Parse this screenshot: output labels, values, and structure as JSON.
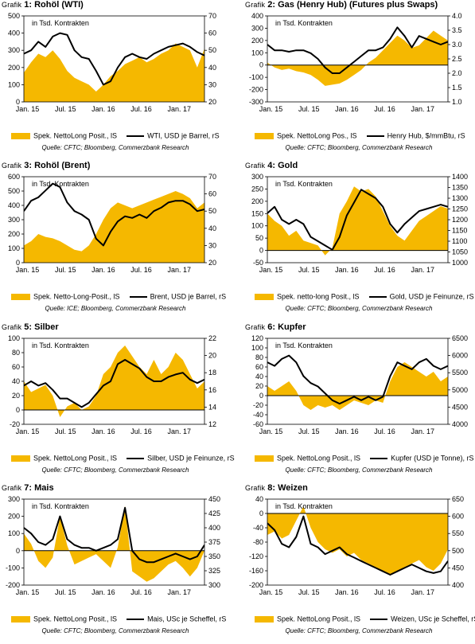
{
  "colors": {
    "bar": "#f5b800",
    "line": "#000000",
    "grid": "#000000"
  },
  "chart_data": [
    {
      "id": "g1",
      "type": "area",
      "title_prefix": "Grafik",
      "title_num": "1: ",
      "title": "Rohöl (WTI)",
      "annotation": "in Tsd. Kontrakten",
      "left_axis": {
        "min": 0,
        "max": 500,
        "ticks": [
          "0",
          "100",
          "200",
          "300",
          "400",
          "500"
        ]
      },
      "right_axis": {
        "min": 20,
        "max": 70,
        "ticks": [
          "20",
          "30",
          "40",
          "50",
          "60",
          "70"
        ]
      },
      "x_ticks": [
        "Jan. 15",
        "Jul. 15",
        "Jan. 16",
        "Jul. 16",
        "Jan. 17"
      ],
      "legend_area": "Spek. NettoLong Posit., lS",
      "legend_line": "WTI, USD je Barrel, rS",
      "source": "Quelle: CFTC; Bloomberg, Commerzbank Research",
      "x": [
        0,
        0.04,
        0.08,
        0.12,
        0.16,
        0.2,
        0.24,
        0.28,
        0.32,
        0.36,
        0.4,
        0.44,
        0.48,
        0.52,
        0.56,
        0.6,
        0.64,
        0.68,
        0.72,
        0.76,
        0.8,
        0.84,
        0.88,
        0.92,
        0.96,
        1.0
      ],
      "area": [
        170,
        230,
        280,
        260,
        300,
        250,
        180,
        140,
        120,
        100,
        60,
        100,
        150,
        180,
        220,
        240,
        260,
        230,
        250,
        280,
        300,
        340,
        320,
        300,
        200,
        310
      ],
      "line": [
        48,
        50,
        55,
        52,
        58,
        60,
        59,
        50,
        46,
        45,
        38,
        30,
        32,
        40,
        46,
        48,
        46,
        45,
        48,
        50,
        52,
        53,
        54,
        52,
        49,
        47
      ]
    },
    {
      "id": "g2",
      "type": "area",
      "title_prefix": "Grafik",
      "title_num": "2: ",
      "title": "Gas (Henry Hub) (Futures plus Swaps)",
      "annotation": "in Tsd. Kontrakten",
      "left_axis": {
        "min": -300,
        "max": 400,
        "ticks": [
          "-300",
          "-200",
          "-100",
          "0",
          "100",
          "200",
          "300",
          "400"
        ]
      },
      "right_axis": {
        "min": 1.0,
        "max": 4.0,
        "ticks": [
          "1.0",
          "1.5",
          "2.0",
          "2.5",
          "3.0",
          "3.5",
          "4.0"
        ]
      },
      "x_ticks": [
        "Jan. 15",
        "Jul. 15",
        "Jan. 16",
        "Jul. 16",
        "Jan. 17"
      ],
      "legend_area": "Spek. NettoLong Pos., lS",
      "legend_line": "Henry Hub, $/mmBtu, rS",
      "source": "Quelle: CFTC; Bloomberg, Commerzbank Research",
      "x": [
        0,
        0.04,
        0.08,
        0.12,
        0.16,
        0.2,
        0.24,
        0.28,
        0.32,
        0.36,
        0.4,
        0.44,
        0.48,
        0.52,
        0.56,
        0.6,
        0.64,
        0.68,
        0.72,
        0.76,
        0.8,
        0.84,
        0.88,
        0.92,
        0.96,
        1.0
      ],
      "area": [
        20,
        -20,
        -40,
        -30,
        -50,
        -60,
        -80,
        -120,
        -170,
        -160,
        -150,
        -120,
        -80,
        -40,
        20,
        60,
        120,
        180,
        240,
        200,
        140,
        160,
        220,
        280,
        240,
        200
      ],
      "line": [
        3.0,
        2.8,
        2.8,
        2.75,
        2.8,
        2.8,
        2.7,
        2.5,
        2.2,
        2.0,
        2.0,
        2.2,
        2.4,
        2.6,
        2.8,
        2.8,
        2.9,
        3.2,
        3.6,
        3.3,
        2.9,
        3.3,
        3.2,
        3.1,
        3.0,
        3.1
      ]
    },
    {
      "id": "g3",
      "type": "area",
      "title_prefix": "Grafik",
      "title_num": "3: ",
      "title": "Rohöl (Brent)",
      "annotation": "in Tsd. Kontrakten",
      "left_axis": {
        "min": 0,
        "max": 600,
        "ticks": [
          "0",
          "100",
          "200",
          "300",
          "400",
          "500",
          "600"
        ]
      },
      "right_axis": {
        "min": 20,
        "max": 70,
        "ticks": [
          "20",
          "30",
          "40",
          "50",
          "60",
          "70"
        ]
      },
      "x_ticks": [
        "Jan. 15",
        "Jul. 15",
        "Jan. 16",
        "Jul. 16",
        "Jan. 17"
      ],
      "legend_area": "Spek. Netto-Long-Posit., lS",
      "legend_line": "Brent, USD je Barrel, rS",
      "source": "Quelle: ICE; Bloomberg, Commerzbank Research",
      "x": [
        0,
        0.04,
        0.08,
        0.12,
        0.16,
        0.2,
        0.24,
        0.28,
        0.32,
        0.36,
        0.4,
        0.44,
        0.48,
        0.52,
        0.56,
        0.6,
        0.64,
        0.68,
        0.72,
        0.76,
        0.8,
        0.84,
        0.88,
        0.92,
        0.96,
        1.0
      ],
      "area": [
        120,
        150,
        200,
        180,
        170,
        150,
        120,
        90,
        80,
        120,
        200,
        300,
        380,
        420,
        400,
        380,
        400,
        420,
        440,
        460,
        480,
        500,
        480,
        450,
        380,
        420
      ],
      "line": [
        50,
        56,
        58,
        62,
        66,
        64,
        55,
        50,
        48,
        45,
        34,
        30,
        38,
        44,
        47,
        46,
        48,
        46,
        50,
        52,
        55,
        56,
        56,
        54,
        50,
        51
      ]
    },
    {
      "id": "g4",
      "type": "area",
      "title_prefix": "Grafik",
      "title_num": "4: ",
      "title": "Gold",
      "annotation": "in Tsd. Kontrakten",
      "left_axis": {
        "min": -50,
        "max": 300,
        "ticks": [
          "-50",
          "0",
          "50",
          "100",
          "150",
          "200",
          "250",
          "300"
        ]
      },
      "right_axis": {
        "min": 1000,
        "max": 1400,
        "ticks": [
          "1000",
          "1050",
          "1100",
          "1150",
          "1200",
          "1250",
          "1300",
          "1350",
          "1400"
        ]
      },
      "x_ticks": [
        "Jan. 15",
        "Jul. 15",
        "Jan. 16",
        "Jul. 16",
        "Jan. 17"
      ],
      "legend_area": "Spek. netto-long Posit., lS",
      "legend_line": "Gold, USD je Feinunze, rS",
      "source": "Quelle: CFTC; Bloomberg, Commerzbank Research",
      "x": [
        0,
        0.04,
        0.08,
        0.12,
        0.16,
        0.2,
        0.24,
        0.28,
        0.32,
        0.36,
        0.4,
        0.44,
        0.48,
        0.52,
        0.56,
        0.6,
        0.64,
        0.68,
        0.72,
        0.76,
        0.8,
        0.84,
        0.88,
        0.92,
        0.96,
        1.0
      ],
      "area": [
        150,
        120,
        100,
        60,
        80,
        40,
        30,
        20,
        -20,
        10,
        150,
        200,
        260,
        240,
        250,
        220,
        160,
        100,
        60,
        40,
        80,
        120,
        140,
        160,
        180,
        170
      ],
      "line": [
        1230,
        1260,
        1200,
        1180,
        1200,
        1180,
        1120,
        1100,
        1080,
        1060,
        1120,
        1220,
        1280,
        1340,
        1320,
        1300,
        1260,
        1180,
        1140,
        1180,
        1210,
        1240,
        1250,
        1260,
        1270,
        1260
      ]
    },
    {
      "id": "g5",
      "type": "area",
      "title_prefix": "Grafik",
      "title_num": "5: ",
      "title": "Silber",
      "annotation": "in Tsd. Kontrakten",
      "left_axis": {
        "min": -20,
        "max": 100,
        "ticks": [
          "-20",
          "0",
          "20",
          "40",
          "60",
          "80",
          "100"
        ]
      },
      "right_axis": {
        "min": 12,
        "max": 22,
        "ticks": [
          "12",
          "14",
          "16",
          "18",
          "20",
          "22"
        ]
      },
      "x_ticks": [
        "Jan. 15",
        "Jul. 15",
        "Jan. 16",
        "Jul. 16",
        "Jan. 17"
      ],
      "legend_area": "Spek. NettoLong Posit., lS",
      "legend_line": "Silber, USD je Feinunze, rS",
      "source": "Quelle: CFTC; Bloomberg, Commerzbank Research",
      "x": [
        0,
        0.04,
        0.08,
        0.12,
        0.16,
        0.2,
        0.24,
        0.28,
        0.32,
        0.36,
        0.4,
        0.44,
        0.48,
        0.52,
        0.56,
        0.6,
        0.64,
        0.68,
        0.72,
        0.76,
        0.8,
        0.84,
        0.88,
        0.92,
        0.96,
        1.0
      ],
      "area": [
        40,
        25,
        30,
        35,
        20,
        -10,
        5,
        10,
        0,
        5,
        20,
        50,
        60,
        80,
        90,
        75,
        60,
        50,
        70,
        50,
        60,
        80,
        70,
        50,
        30,
        40
      ],
      "line": [
        16.5,
        17,
        16.5,
        16.8,
        16,
        15,
        15,
        14.5,
        14,
        14.5,
        15.5,
        16.5,
        17,
        19,
        19.5,
        19,
        18.5,
        17.5,
        17,
        17,
        17.5,
        17.8,
        18,
        17.2,
        16.8,
        17.2
      ]
    },
    {
      "id": "g6",
      "type": "area",
      "title_prefix": "Grafik",
      "title_num": "6: ",
      "title": "Kupfer",
      "annotation": "in Tsd. Kontrakten",
      "left_axis": {
        "min": -60,
        "max": 120,
        "ticks": [
          "-60",
          "-40",
          "-20",
          "0",
          "20",
          "40",
          "60",
          "80",
          "100",
          "120"
        ]
      },
      "right_axis": {
        "min": 4000,
        "max": 6500,
        "ticks": [
          "4000",
          "4500",
          "5000",
          "5500",
          "6000",
          "6500"
        ]
      },
      "x_ticks": [
        "Jan. 15",
        "Jul. 15",
        "Jan. 16",
        "Jul. 16",
        "Jan. 17"
      ],
      "legend_area": "Spek. NettoLong Posit., lS",
      "legend_line": "Kupfer (USD je Tonne), rS",
      "source": "Quelle: CFTC; Bloomberg, Commerzbank Research",
      "x": [
        0,
        0.04,
        0.08,
        0.12,
        0.16,
        0.2,
        0.24,
        0.28,
        0.32,
        0.36,
        0.4,
        0.44,
        0.48,
        0.52,
        0.56,
        0.6,
        0.64,
        0.68,
        0.72,
        0.76,
        0.8,
        0.84,
        0.88,
        0.92,
        0.96,
        1.0
      ],
      "area": [
        20,
        10,
        20,
        30,
        10,
        -20,
        -30,
        -20,
        -25,
        -20,
        -30,
        -20,
        -10,
        -15,
        -20,
        -10,
        -15,
        30,
        60,
        70,
        60,
        50,
        40,
        50,
        30,
        40
      ],
      "line": [
        5800,
        5700,
        5900,
        6000,
        5800,
        5400,
        5200,
        5100,
        4900,
        4700,
        4600,
        4700,
        4800,
        4700,
        4800,
        4700,
        4800,
        5400,
        5800,
        5700,
        5600,
        5800,
        5900,
        5700,
        5600,
        5700
      ]
    },
    {
      "id": "g7",
      "type": "area",
      "title_prefix": "Grafik",
      "title_num": "7: ",
      "title": "Mais",
      "annotation": "in Tsd. Kontrakten",
      "left_axis": {
        "min": -200,
        "max": 300,
        "ticks": [
          "-200",
          "-100",
          "0",
          "100",
          "200",
          "300"
        ]
      },
      "right_axis": {
        "min": 300,
        "max": 450,
        "ticks": [
          "300",
          "325",
          "350",
          "375",
          "400",
          "425",
          "450"
        ]
      },
      "x_ticks": [
        "Jan. 15",
        "Jul. 15",
        "Jan. 16",
        "Jul. 16",
        "Jan. 17"
      ],
      "legend_area": "Spek. NettoLong Posit., lS",
      "legend_line": "Mais, USc je Scheffel, rS",
      "source": "Quelle: CFTC; Bloomberg, Commerzbank Research",
      "x": [
        0,
        0.04,
        0.08,
        0.12,
        0.16,
        0.2,
        0.24,
        0.28,
        0.32,
        0.36,
        0.4,
        0.44,
        0.48,
        0.52,
        0.56,
        0.6,
        0.64,
        0.68,
        0.72,
        0.76,
        0.8,
        0.84,
        0.88,
        0.92,
        0.96,
        1.0
      ],
      "area": [
        100,
        40,
        -60,
        -100,
        -40,
        200,
        30,
        -80,
        -60,
        -40,
        -20,
        -60,
        -100,
        20,
        260,
        -120,
        -150,
        -180,
        -160,
        -120,
        -80,
        -60,
        -100,
        -150,
        -100,
        0
      ],
      "line": [
        400,
        390,
        375,
        370,
        380,
        420,
        380,
        370,
        365,
        365,
        360,
        365,
        370,
        380,
        435,
        360,
        345,
        340,
        340,
        345,
        350,
        355,
        350,
        345,
        350,
        370
      ]
    },
    {
      "id": "g8",
      "type": "area",
      "title_prefix": "Grafik",
      "title_num": "8: ",
      "title": "Weizen",
      "annotation": "in Tsd. Kontrakten",
      "left_axis": {
        "min": -200,
        "max": 40,
        "ticks": [
          "-200",
          "-160",
          "-120",
          "-80",
          "-40",
          "0",
          "40"
        ]
      },
      "right_axis": {
        "min": 400,
        "max": 650,
        "ticks": [
          "400",
          "450",
          "500",
          "550",
          "600",
          "650"
        ]
      },
      "x_ticks": [
        "Jan. 15",
        "Jul. 15",
        "Jan. 16",
        "Jul. 16",
        "Jan. 17"
      ],
      "legend_area": "Spek. NettoLong Posit., lS",
      "legend_line": "Weizen, USc je Scheffel, rS",
      "source": "Quelle: CFTC; Bloomberg, Commerzbank Research",
      "x": [
        0,
        0.04,
        0.08,
        0.12,
        0.16,
        0.2,
        0.24,
        0.28,
        0.32,
        0.36,
        0.4,
        0.44,
        0.48,
        0.52,
        0.56,
        0.6,
        0.64,
        0.68,
        0.72,
        0.76,
        0.8,
        0.84,
        0.88,
        0.92,
        0.96,
        1.0
      ],
      "area": [
        -60,
        -50,
        -70,
        -60,
        -20,
        20,
        -40,
        -80,
        -100,
        -110,
        -100,
        -120,
        -110,
        -130,
        -140,
        -150,
        -160,
        -170,
        -160,
        -150,
        -140,
        -130,
        -150,
        -160,
        -140,
        -100
      ],
      "line": [
        580,
        560,
        520,
        510,
        540,
        600,
        520,
        510,
        490,
        500,
        510,
        490,
        480,
        470,
        460,
        450,
        440,
        430,
        440,
        450,
        460,
        450,
        440,
        435,
        440,
        470
      ]
    }
  ]
}
